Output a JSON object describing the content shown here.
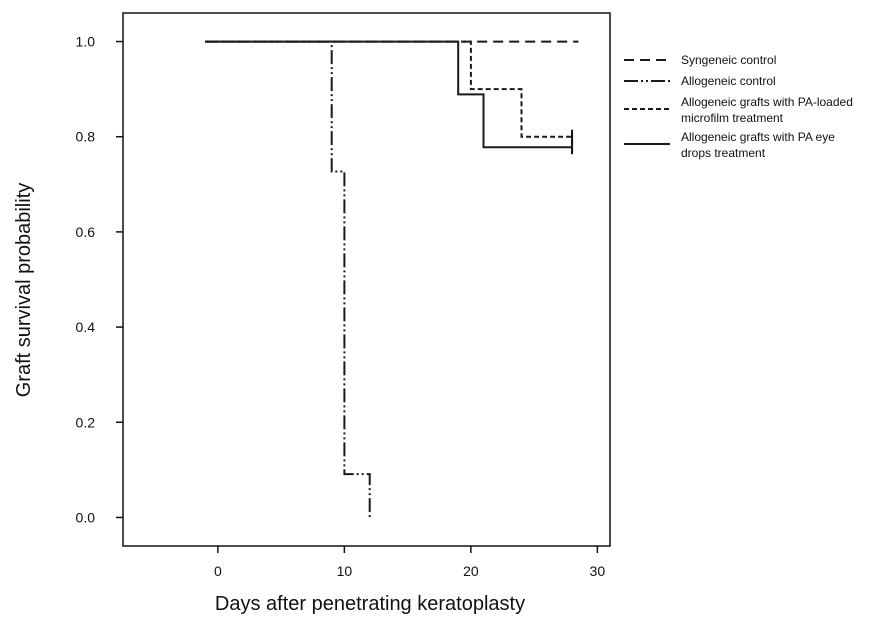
{
  "chart_data": {
    "type": "line",
    "title": "",
    "xlabel": "Days after penetrating keratoplasty",
    "ylabel": "Graft survival probability",
    "xlim": [
      -7.5,
      31
    ],
    "ylim": [
      -0.06,
      1.06
    ],
    "x_ticks": [
      0,
      10,
      20,
      30
    ],
    "x_tick_labels": [
      "0",
      "10",
      "20",
      "30"
    ],
    "y_ticks": [
      0.0,
      0.2,
      0.4,
      0.6,
      0.8,
      1.0
    ],
    "y_tick_labels": [
      "0.0",
      "0.2",
      "0.4",
      "0.6",
      "0.8",
      "1.0"
    ],
    "grid": false,
    "legend_position": "right",
    "series": [
      {
        "name": "Syngeneic control",
        "line_style": "dashed",
        "step_points": [
          [
            -1,
            1.0
          ],
          [
            28.5,
            1.0
          ]
        ],
        "censored": []
      },
      {
        "name": "Allogeneic control",
        "line_style": "dash-dot-dot",
        "step_points": [
          [
            -1,
            1.0
          ],
          [
            9,
            1.0
          ],
          [
            9,
            0.727
          ],
          [
            10,
            0.727
          ],
          [
            10,
            0.091
          ],
          [
            12,
            0.091
          ],
          [
            12,
            0.0
          ]
        ],
        "censored": []
      },
      {
        "name": "Allogeneic grafts with PA-loaded microfilm treatment",
        "line_style": "short-dashed",
        "step_points": [
          [
            -1,
            1.0
          ],
          [
            20,
            1.0
          ],
          [
            20,
            0.9
          ],
          [
            24,
            0.9
          ],
          [
            24,
            0.8
          ],
          [
            28,
            0.8
          ]
        ],
        "censored": [
          [
            28,
            0.8
          ]
        ]
      },
      {
        "name": "Allogeneic grafts with PA eye drops treatment",
        "line_style": "solid",
        "step_points": [
          [
            -1,
            1.0
          ],
          [
            19,
            1.0
          ],
          [
            19,
            0.889
          ],
          [
            21,
            0.889
          ],
          [
            21,
            0.778
          ],
          [
            28,
            0.778
          ]
        ],
        "censored": [
          [
            28,
            0.778
          ]
        ]
      }
    ],
    "legend": [
      {
        "lines": [
          "Syngeneic control"
        ],
        "line_style": "dashed"
      },
      {
        "lines": [
          "Allogeneic control"
        ],
        "line_style": "dash-dot-dot"
      },
      {
        "lines": [
          "Allogeneic grafts with PA-loaded",
          "microfilm treatment"
        ],
        "line_style": "short-dashed"
      },
      {
        "lines": [
          "Allogeneic grafts with PA eye",
          "drops treatment"
        ],
        "line_style": "solid"
      }
    ]
  }
}
